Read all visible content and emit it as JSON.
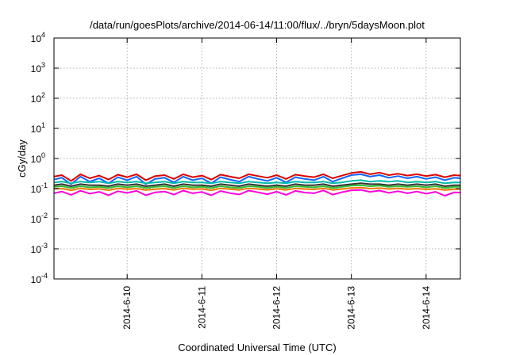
{
  "chart_data": {
    "type": "line",
    "title": "/data/run/goesPlots/archive/2014-06-14/11:00/flux/../bryn/5daysMoon.plot",
    "xlabel": "Coordinated Universal Time (UTC)",
    "ylabel": "cGy/day",
    "yscale": "log",
    "ylim": [
      0.0001,
      10000
    ],
    "xlim": [
      "2014-06-09T00:30",
      "2014-06-14T11:00"
    ],
    "grid": true,
    "y_ticks": [
      {
        "base": "10",
        "exp": "-4",
        "value": 0.0001
      },
      {
        "base": "10",
        "exp": "-3",
        "value": 0.001
      },
      {
        "base": "10",
        "exp": "-2",
        "value": 0.01
      },
      {
        "base": "10",
        "exp": "-1",
        "value": 0.1
      },
      {
        "base": "10",
        "exp": "0",
        "value": 1
      },
      {
        "base": "10",
        "exp": "1",
        "value": 10
      },
      {
        "base": "10",
        "exp": "2",
        "value": 100
      },
      {
        "base": "10",
        "exp": "3",
        "value": 1000
      },
      {
        "base": "10",
        "exp": "4",
        "value": 10000
      }
    ],
    "x_ticks": [
      {
        "label": "2014-6-10",
        "value": "2014-06-10T00:00"
      },
      {
        "label": "2014-6-11",
        "value": "2014-06-11T00:00"
      },
      {
        "label": "2014-6-12",
        "value": "2014-06-12T00:00"
      },
      {
        "label": "2014-6-13",
        "value": "2014-06-13T00:00"
      },
      {
        "label": "2014-6-14",
        "value": "2014-06-14T00:00"
      }
    ],
    "x": [
      "2014-06-09T00:30",
      "2014-06-09T03:00",
      "2014-06-09T06:00",
      "2014-06-09T09:00",
      "2014-06-09T12:00",
      "2014-06-09T15:00",
      "2014-06-09T18:00",
      "2014-06-09T21:00",
      "2014-06-10T00:00",
      "2014-06-10T03:00",
      "2014-06-10T06:00",
      "2014-06-10T09:00",
      "2014-06-10T12:00",
      "2014-06-10T15:00",
      "2014-06-10T18:00",
      "2014-06-10T21:00",
      "2014-06-11T00:00",
      "2014-06-11T03:00",
      "2014-06-11T06:00",
      "2014-06-11T09:00",
      "2014-06-11T12:00",
      "2014-06-11T15:00",
      "2014-06-11T18:00",
      "2014-06-11T21:00",
      "2014-06-12T00:00",
      "2014-06-12T03:00",
      "2014-06-12T06:00",
      "2014-06-12T09:00",
      "2014-06-12T12:00",
      "2014-06-12T15:00",
      "2014-06-12T18:00",
      "2014-06-12T21:00",
      "2014-06-13T00:00",
      "2014-06-13T03:00",
      "2014-06-13T06:00",
      "2014-06-13T09:00",
      "2014-06-13T12:00",
      "2014-06-13T15:00",
      "2014-06-13T18:00",
      "2014-06-13T21:00",
      "2014-06-14T00:00",
      "2014-06-14T03:00",
      "2014-06-14T06:00",
      "2014-06-14T09:00",
      "2014-06-14T11:00"
    ],
    "series": [
      {
        "color": "#dd0000",
        "values": [
          0.25,
          0.28,
          0.18,
          0.3,
          0.22,
          0.27,
          0.2,
          0.29,
          0.24,
          0.3,
          0.19,
          0.26,
          0.28,
          0.21,
          0.3,
          0.24,
          0.27,
          0.2,
          0.29,
          0.25,
          0.22,
          0.3,
          0.26,
          0.23,
          0.28,
          0.21,
          0.29,
          0.26,
          0.24,
          0.3,
          0.22,
          0.27,
          0.33,
          0.36,
          0.3,
          0.34,
          0.28,
          0.31,
          0.27,
          0.3,
          0.26,
          0.29,
          0.24,
          0.28,
          0.27
        ]
      },
      {
        "color": "#1166ff",
        "values": [
          0.2,
          0.23,
          0.14,
          0.25,
          0.17,
          0.22,
          0.15,
          0.24,
          0.19,
          0.25,
          0.14,
          0.21,
          0.23,
          0.16,
          0.25,
          0.19,
          0.22,
          0.15,
          0.24,
          0.2,
          0.17,
          0.25,
          0.21,
          0.18,
          0.23,
          0.16,
          0.24,
          0.21,
          0.19,
          0.25,
          0.17,
          0.22,
          0.28,
          0.3,
          0.25,
          0.28,
          0.23,
          0.26,
          0.22,
          0.25,
          0.21,
          0.24,
          0.19,
          0.23,
          0.22
        ]
      },
      {
        "color": "#00bbaa",
        "values": [
          0.16,
          0.17,
          0.15,
          0.17,
          0.16,
          0.17,
          0.15,
          0.17,
          0.16,
          0.17,
          0.15,
          0.16,
          0.17,
          0.15,
          0.17,
          0.16,
          0.16,
          0.15,
          0.17,
          0.16,
          0.15,
          0.17,
          0.16,
          0.15,
          0.16,
          0.15,
          0.17,
          0.16,
          0.16,
          0.17,
          0.15,
          0.16,
          0.18,
          0.19,
          0.17,
          0.18,
          0.17,
          0.18,
          0.16,
          0.17,
          0.16,
          0.17,
          0.15,
          0.16,
          0.16
        ]
      },
      {
        "color": "#333333",
        "values": [
          0.13,
          0.14,
          0.12,
          0.14,
          0.13,
          0.13,
          0.12,
          0.14,
          0.13,
          0.14,
          0.12,
          0.13,
          0.14,
          0.12,
          0.14,
          0.13,
          0.13,
          0.12,
          0.14,
          0.13,
          0.12,
          0.14,
          0.13,
          0.12,
          0.13,
          0.12,
          0.14,
          0.13,
          0.13,
          0.14,
          0.12,
          0.13,
          0.14,
          0.15,
          0.14,
          0.14,
          0.13,
          0.14,
          0.13,
          0.14,
          0.13,
          0.14,
          0.12,
          0.13,
          0.13
        ]
      },
      {
        "color": "#33bb33",
        "values": [
          0.115,
          0.12,
          0.105,
          0.12,
          0.11,
          0.115,
          0.105,
          0.12,
          0.11,
          0.12,
          0.105,
          0.115,
          0.12,
          0.105,
          0.12,
          0.11,
          0.115,
          0.105,
          0.12,
          0.11,
          0.105,
          0.12,
          0.115,
          0.105,
          0.115,
          0.105,
          0.12,
          0.115,
          0.11,
          0.12,
          0.105,
          0.115,
          0.125,
          0.13,
          0.12,
          0.125,
          0.115,
          0.12,
          0.115,
          0.12,
          0.11,
          0.12,
          0.105,
          0.115,
          0.115
        ]
      },
      {
        "color": "#ee7700",
        "values": [
          0.098,
          0.1,
          0.088,
          0.102,
          0.094,
          0.098,
          0.088,
          0.101,
          0.095,
          0.1,
          0.089,
          0.096,
          0.1,
          0.09,
          0.102,
          0.095,
          0.097,
          0.088,
          0.101,
          0.095,
          0.09,
          0.102,
          0.097,
          0.091,
          0.098,
          0.09,
          0.101,
          0.097,
          0.094,
          0.102,
          0.09,
          0.097,
          0.105,
          0.108,
          0.1,
          0.104,
          0.097,
          0.101,
          0.096,
          0.1,
          0.094,
          0.099,
          0.089,
          0.096,
          0.096
        ]
      },
      {
        "color": "#ff00dd",
        "values": [
          0.07,
          0.08,
          0.062,
          0.085,
          0.068,
          0.078,
          0.06,
          0.082,
          0.072,
          0.084,
          0.06,
          0.075,
          0.08,
          0.063,
          0.086,
          0.07,
          0.077,
          0.06,
          0.083,
          0.071,
          0.064,
          0.086,
          0.075,
          0.065,
          0.079,
          0.062,
          0.084,
          0.074,
          0.07,
          0.087,
          0.063,
          0.076,
          0.088,
          0.09,
          0.078,
          0.086,
          0.072,
          0.082,
          0.07,
          0.08,
          0.068,
          0.078,
          0.058,
          0.075,
          0.074
        ]
      }
    ]
  }
}
